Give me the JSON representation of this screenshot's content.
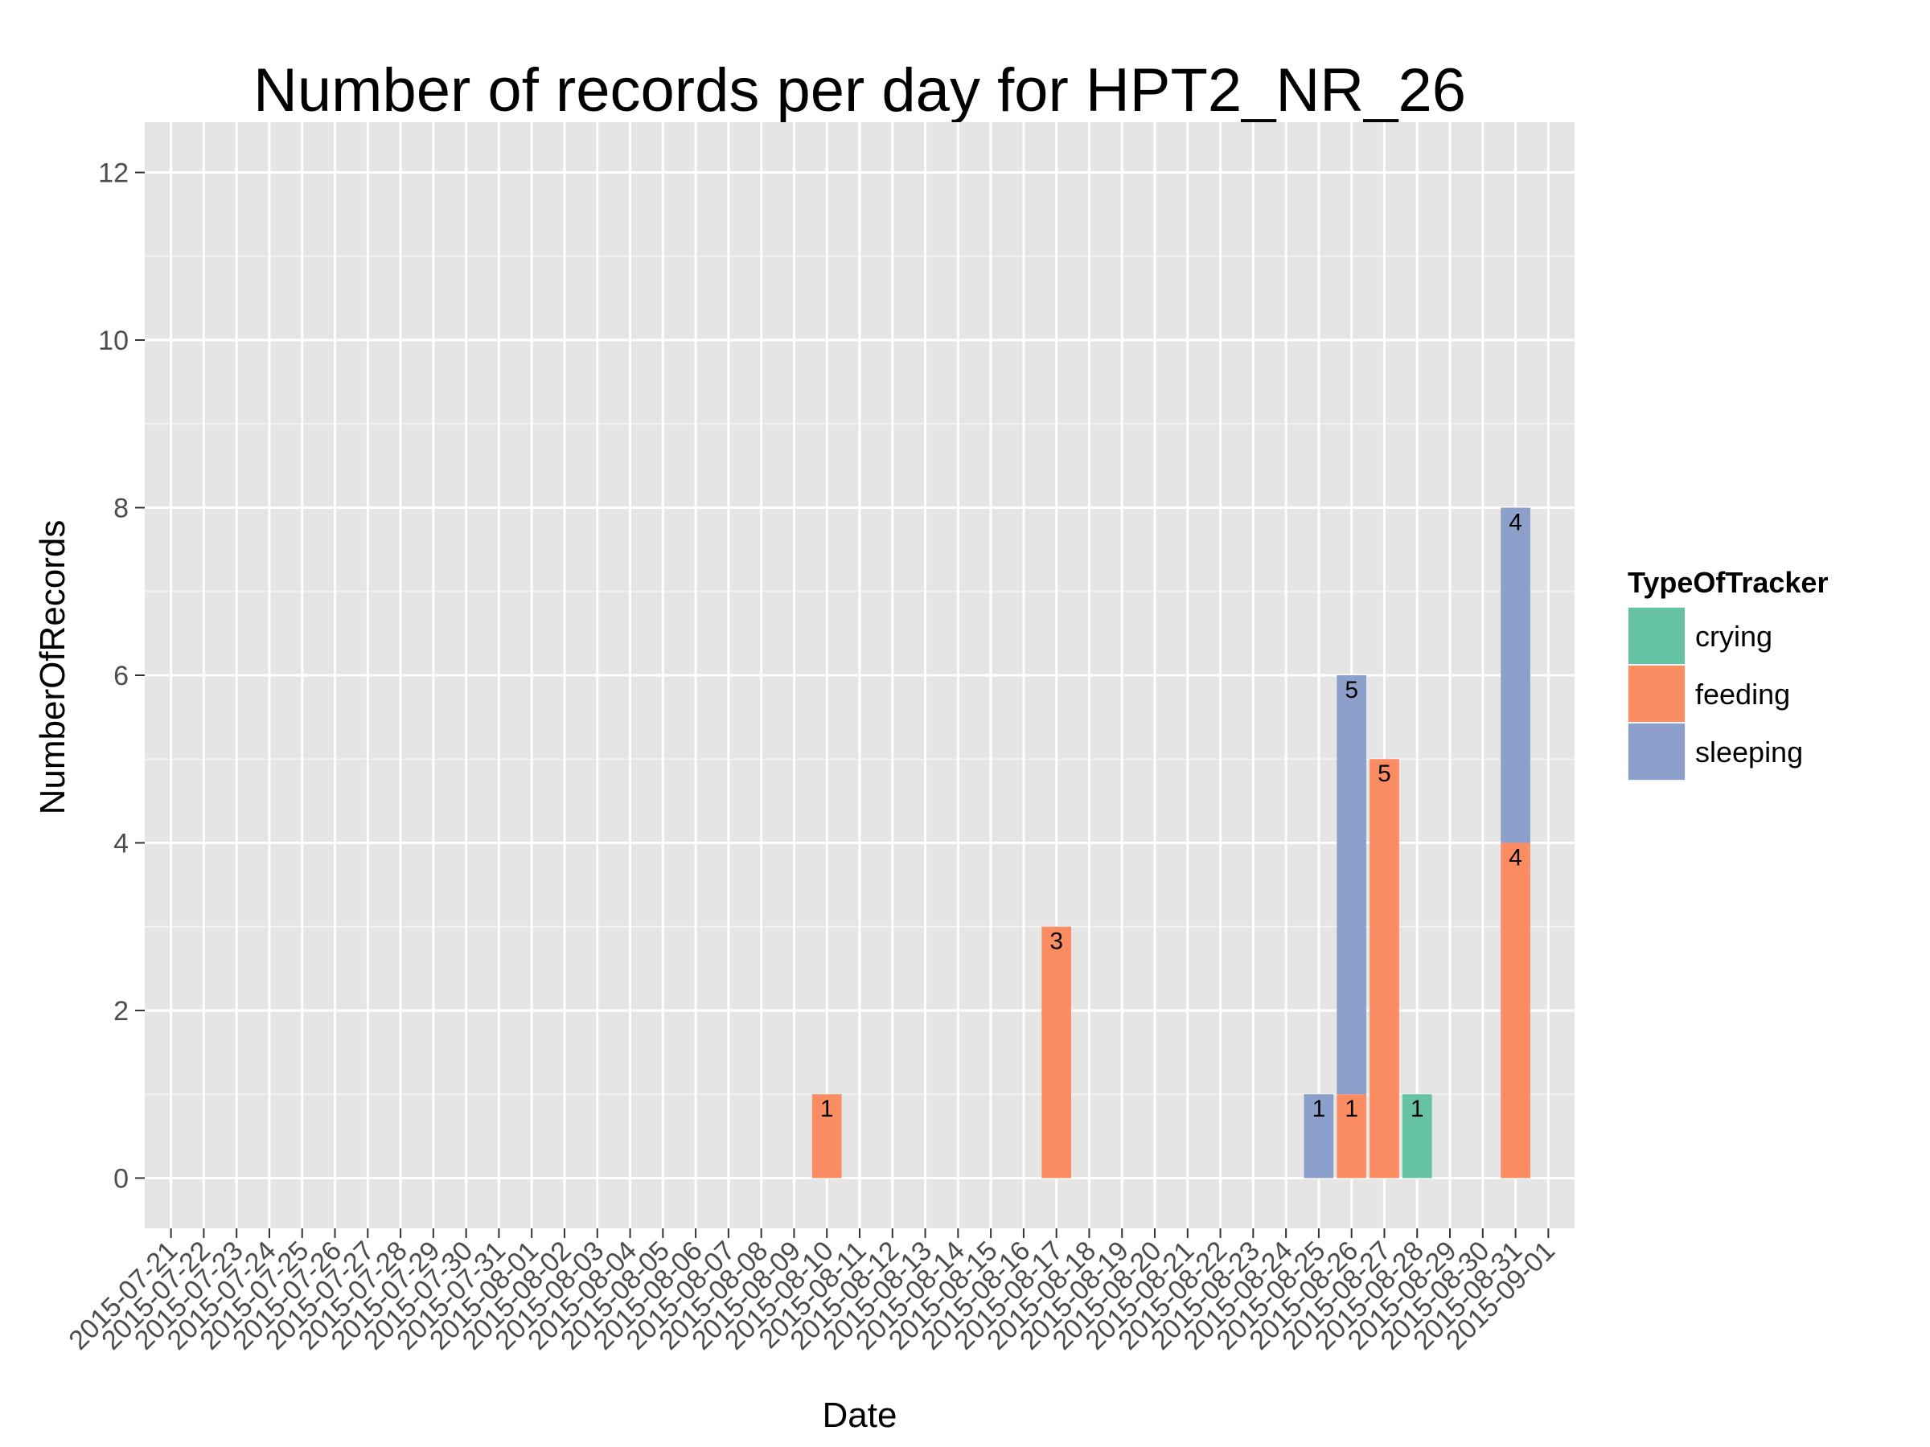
{
  "chart_data": {
    "type": "bar",
    "stacked": true,
    "title": "Number of records per day for HPT2_NR_26",
    "xlabel": "Date",
    "ylabel": "NumberOfRecords",
    "ylim": [
      -0.6,
      12.6
    ],
    "yticks": [
      0,
      2,
      4,
      6,
      8,
      10,
      12
    ],
    "grid": true,
    "legend": {
      "title": "TypeOfTracker",
      "placement": "right",
      "entries": [
        "crying",
        "feeding",
        "sleeping"
      ]
    },
    "colors": {
      "crying": "#66c2a5",
      "feeding": "#fc8d62",
      "sleeping": "#8da0cb",
      "panel": "#e5e5e5",
      "grid_major": "#ffffff",
      "grid_minor": "#f2f2f2"
    },
    "categories": [
      "2015-07-21",
      "2015-07-22",
      "2015-07-23",
      "2015-07-24",
      "2015-07-25",
      "2015-07-26",
      "2015-07-27",
      "2015-07-28",
      "2015-07-29",
      "2015-07-30",
      "2015-07-31",
      "2015-08-01",
      "2015-08-02",
      "2015-08-03",
      "2015-08-04",
      "2015-08-05",
      "2015-08-06",
      "2015-08-07",
      "2015-08-08",
      "2015-08-09",
      "2015-08-10",
      "2015-08-11",
      "2015-08-12",
      "2015-08-13",
      "2015-08-14",
      "2015-08-15",
      "2015-08-16",
      "2015-08-17",
      "2015-08-18",
      "2015-08-19",
      "2015-08-20",
      "2015-08-21",
      "2015-08-22",
      "2015-08-23",
      "2015-08-24",
      "2015-08-25",
      "2015-08-26",
      "2015-08-27",
      "2015-08-28",
      "2015-08-29",
      "2015-08-30",
      "2015-08-31",
      "2015-09-01"
    ],
    "bars": [
      {
        "date": "2015-08-10",
        "segments": [
          {
            "series": "feeding",
            "value": 1,
            "label": "1"
          }
        ]
      },
      {
        "date": "2015-08-17",
        "segments": [
          {
            "series": "feeding",
            "value": 3,
            "label": "3"
          }
        ]
      },
      {
        "date": "2015-08-25",
        "segments": [
          {
            "series": "sleeping",
            "value": 1,
            "label": "1"
          }
        ]
      },
      {
        "date": "2015-08-26",
        "segments": [
          {
            "series": "feeding",
            "value": 1,
            "label": "1"
          },
          {
            "series": "sleeping",
            "value": 5,
            "label": "5"
          }
        ]
      },
      {
        "date": "2015-08-27",
        "segments": [
          {
            "series": "feeding",
            "value": 5,
            "label": "5"
          }
        ]
      },
      {
        "date": "2015-08-28",
        "segments": [
          {
            "series": "crying",
            "value": 1,
            "label": "1"
          }
        ]
      },
      {
        "date": "2015-08-31",
        "segments": [
          {
            "series": "feeding",
            "value": 4,
            "label": "4"
          },
          {
            "series": "sleeping",
            "value": 4,
            "label": "4"
          }
        ]
      }
    ]
  }
}
